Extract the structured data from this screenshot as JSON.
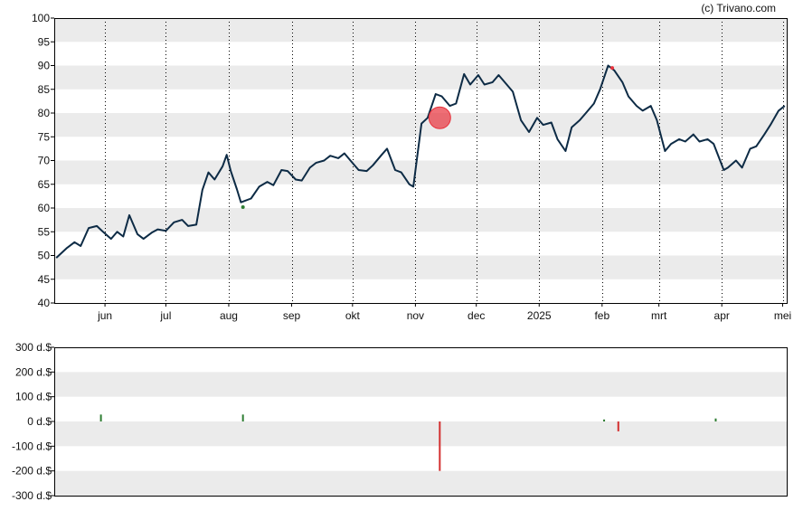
{
  "credit": "(c) Trivano.com",
  "colors": {
    "price_line": "#0d2b45",
    "band": "#ebebeb",
    "frame": "#000000",
    "marker": "#e8323c",
    "positive": "#2e7d32",
    "negative": "#d32f2f"
  },
  "chart_data": [
    {
      "type": "line",
      "title": "",
      "x_tick_labels": [
        "jun",
        "jul",
        "aug",
        "sep",
        "okt",
        "nov",
        "dec",
        "2025",
        "feb",
        "mrt",
        "apr",
        "mei"
      ],
      "y_tick_labels": [
        "40",
        "45",
        "50",
        "55",
        "60",
        "65",
        "70",
        "75",
        "80",
        "85",
        "90",
        "95",
        "100"
      ],
      "ylim": [
        40,
        100
      ],
      "grid": "vertical dotted at month ticks, alternating horizontal bands",
      "series": [
        {
          "points": [
            [
              "2024-05-08",
              49.5
            ],
            [
              "2024-05-13",
              51.5
            ],
            [
              "2024-05-17",
              52.8
            ],
            [
              "2024-05-20",
              52.0
            ],
            [
              "2024-05-24",
              55.8
            ],
            [
              "2024-05-28",
              56.2
            ],
            [
              "2024-05-31",
              55.0
            ],
            [
              "2024-06-04",
              53.5
            ],
            [
              "2024-06-07",
              55.0
            ],
            [
              "2024-06-10",
              54.0
            ],
            [
              "2024-06-13",
              58.5
            ],
            [
              "2024-06-17",
              54.5
            ],
            [
              "2024-06-20",
              53.5
            ],
            [
              "2024-06-24",
              54.8
            ],
            [
              "2024-06-27",
              55.5
            ],
            [
              "2024-07-01",
              55.2
            ],
            [
              "2024-07-05",
              57.0
            ],
            [
              "2024-07-09",
              57.5
            ],
            [
              "2024-07-12",
              56.2
            ],
            [
              "2024-07-16",
              56.5
            ],
            [
              "2024-07-19",
              63.8
            ],
            [
              "2024-07-22",
              67.5
            ],
            [
              "2024-07-25",
              66.0
            ],
            [
              "2024-07-29",
              68.8
            ],
            [
              "2024-07-31",
              71.2
            ],
            [
              "2024-08-02",
              67.8
            ],
            [
              "2024-08-05",
              64.0
            ],
            [
              "2024-08-07",
              61.2
            ],
            [
              "2024-08-12",
              62.0
            ],
            [
              "2024-08-16",
              64.5
            ],
            [
              "2024-08-20",
              65.5
            ],
            [
              "2024-08-23",
              64.8
            ],
            [
              "2024-08-27",
              68.0
            ],
            [
              "2024-08-30",
              67.8
            ],
            [
              "2024-09-03",
              66.0
            ],
            [
              "2024-09-06",
              65.8
            ],
            [
              "2024-09-10",
              68.5
            ],
            [
              "2024-09-13",
              69.5
            ],
            [
              "2024-09-17",
              70.0
            ],
            [
              "2024-09-20",
              71.0
            ],
            [
              "2024-09-24",
              70.5
            ],
            [
              "2024-09-27",
              71.5
            ],
            [
              "2024-10-01",
              69.5
            ],
            [
              "2024-10-04",
              68.0
            ],
            [
              "2024-10-08",
              67.8
            ],
            [
              "2024-10-11",
              69.0
            ],
            [
              "2024-10-15",
              71.0
            ],
            [
              "2024-10-18",
              72.5
            ],
            [
              "2024-10-22",
              68.0
            ],
            [
              "2024-10-25",
              67.5
            ],
            [
              "2024-10-29",
              65.0
            ],
            [
              "2024-10-31",
              64.5
            ],
            [
              "2024-11-04",
              77.8
            ],
            [
              "2024-11-07",
              79.0
            ],
            [
              "2024-11-11",
              84.0
            ],
            [
              "2024-11-14",
              83.5
            ],
            [
              "2024-11-18",
              81.5
            ],
            [
              "2024-11-21",
              82.0
            ],
            [
              "2024-11-25",
              88.2
            ],
            [
              "2024-11-28",
              86.0
            ],
            [
              "2024-12-02",
              88.0
            ],
            [
              "2024-12-05",
              86.0
            ],
            [
              "2024-12-09",
              86.5
            ],
            [
              "2024-12-12",
              88.0
            ],
            [
              "2024-12-16",
              86.0
            ],
            [
              "2024-12-19",
              84.5
            ],
            [
              "2024-12-23",
              78.5
            ],
            [
              "2024-12-27",
              76.0
            ],
            [
              "2024-12-31",
              79.0
            ],
            [
              "2025-01-03",
              77.5
            ],
            [
              "2025-01-07",
              78.0
            ],
            [
              "2025-01-10",
              74.5
            ],
            [
              "2025-01-14",
              72.0
            ],
            [
              "2025-01-17",
              77.0
            ],
            [
              "2025-01-21",
              78.5
            ],
            [
              "2025-01-24",
              80.0
            ],
            [
              "2025-01-28",
              82.0
            ],
            [
              "2025-01-31",
              85.0
            ],
            [
              "2025-02-04",
              90.0
            ],
            [
              "2025-02-07",
              89.0
            ],
            [
              "2025-02-11",
              86.5
            ],
            [
              "2025-02-14",
              83.5
            ],
            [
              "2025-02-18",
              81.5
            ],
            [
              "2025-02-21",
              80.5
            ],
            [
              "2025-02-25",
              81.5
            ],
            [
              "2025-02-28",
              78.5
            ],
            [
              "2025-03-04",
              72.0
            ],
            [
              "2025-03-07",
              73.5
            ],
            [
              "2025-03-11",
              74.5
            ],
            [
              "2025-03-14",
              74.0
            ],
            [
              "2025-03-18",
              75.5
            ],
            [
              "2025-03-21",
              74.0
            ],
            [
              "2025-03-25",
              74.5
            ],
            [
              "2025-03-28",
              73.5
            ],
            [
              "2025-04-02",
              68.0
            ],
            [
              "2025-04-04",
              68.5
            ],
            [
              "2025-04-08",
              70.0
            ],
            [
              "2025-04-11",
              68.5
            ],
            [
              "2025-04-15",
              72.5
            ],
            [
              "2025-04-18",
              73.0
            ],
            [
              "2025-04-22",
              75.5
            ],
            [
              "2025-04-25",
              77.5
            ],
            [
              "2025-04-29",
              80.5
            ],
            [
              "2025-05-02",
              81.5
            ]
          ]
        }
      ],
      "markers": [
        {
          "date": "2024-11-13",
          "value": 79.0,
          "kind": "sell-circle"
        },
        {
          "date": "2024-08-08",
          "value": 60.2,
          "kind": "buy-dot"
        },
        {
          "date": "2025-02-06",
          "value": 89.5,
          "kind": "sell-dot"
        }
      ]
    },
    {
      "type": "bar",
      "title": "",
      "y_tick_labels": [
        "300 d.$",
        "200 d.$",
        "100 d.$",
        "0 d.$",
        "-100 d.$",
        "-200 d.$",
        "-300 d.$"
      ],
      "ylim": [
        -300,
        300
      ],
      "unit": "d.$",
      "grid": "alternating horizontal bands",
      "bars": [
        {
          "date": "2024-05-30",
          "value": 28
        },
        {
          "date": "2024-08-08",
          "value": 28
        },
        {
          "date": "2024-11-13",
          "value": -200
        },
        {
          "date": "2025-02-02",
          "value": 8
        },
        {
          "date": "2025-02-09",
          "value": -40
        },
        {
          "date": "2025-03-29",
          "value": 12
        }
      ]
    }
  ]
}
